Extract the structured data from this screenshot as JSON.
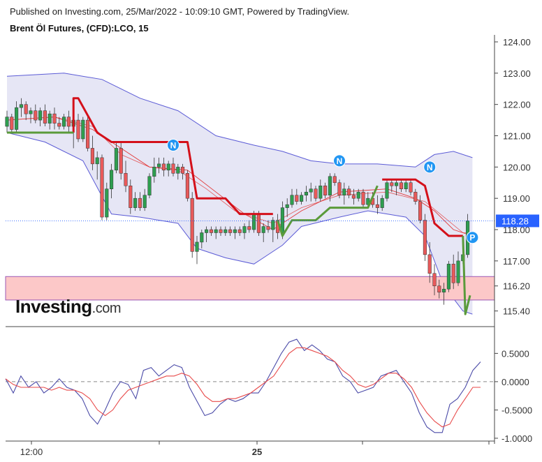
{
  "header": {
    "published": "Published on Investing.com, 25/Mar/2022 - 10:09:10 GMT, Powered by TradingView.",
    "title": "Brent Öl Futures, (CFD):LCO, 15"
  },
  "logo": {
    "word": "Investing",
    "suffix": ".com"
  },
  "colors": {
    "bull": "#2e9e4f",
    "bear": "#e8595a",
    "band_line": "#5b5bd6",
    "band_fill": "#e6e6f5",
    "supertrend_down": "#d4101a",
    "supertrend_up": "#5a9a3a",
    "ma": "#e23a3a",
    "zone_fill": "#fcc8c8",
    "zone_edge": "#9b59b6",
    "price_tag": "#2962ff",
    "osc_line": "#4b4ba8",
    "osc_signal": "#e84a4a"
  },
  "chart_data": [
    {
      "type": "candlestick",
      "title": "Brent Öl Futures, (CFD):LCO, 15",
      "x_ticks": [
        {
          "label": "12:00",
          "bold": false
        },
        {
          "label": "25",
          "bold": true
        }
      ],
      "y_ticks": [
        "124.00",
        "123.00",
        "122.00",
        "121.00",
        "120.00",
        "119.00",
        "118.00",
        "117.00",
        "116.20",
        "115.40"
      ],
      "y_range": [
        114.9,
        124.0
      ],
      "last_price": "118.28",
      "support_zone": [
        115.75,
        116.5
      ],
      "markers": [
        {
          "label": "N",
          "bar": 35,
          "price": 120.7
        },
        {
          "label": "N",
          "bar": 70,
          "price": 120.2
        },
        {
          "label": "N",
          "bar": 89,
          "price": 120.0
        },
        {
          "label": "P",
          "bar": 98,
          "price": 117.75
        }
      ],
      "candles": [
        [
          121.3,
          121.8,
          121.1,
          121.6
        ],
        [
          121.6,
          121.7,
          121.1,
          121.2
        ],
        [
          121.2,
          122.1,
          121.1,
          121.9
        ],
        [
          121.9,
          122.2,
          121.6,
          122.0
        ],
        [
          122.0,
          122.1,
          121.5,
          121.7
        ],
        [
          121.7,
          121.9,
          121.4,
          121.8
        ],
        [
          121.8,
          122.0,
          121.4,
          121.5
        ],
        [
          121.5,
          121.9,
          121.3,
          121.8
        ],
        [
          121.8,
          122.0,
          121.3,
          121.4
        ],
        [
          121.4,
          121.8,
          121.2,
          121.7
        ],
        [
          121.7,
          121.9,
          121.2,
          121.4
        ],
        [
          121.4,
          121.6,
          121.2,
          121.3
        ],
        [
          121.3,
          121.7,
          121.2,
          121.6
        ],
        [
          121.6,
          121.8,
          121.1,
          121.3
        ],
        [
          121.3,
          121.7,
          120.6,
          121.5
        ],
        [
          121.5,
          121.7,
          120.8,
          120.9
        ],
        [
          120.9,
          121.6,
          120.8,
          121.5
        ],
        [
          121.5,
          121.7,
          120.5,
          120.6
        ],
        [
          120.6,
          121.0,
          119.9,
          120.1
        ],
        [
          120.1,
          120.5,
          119.6,
          120.3
        ],
        [
          120.3,
          120.4,
          118.3,
          118.4
        ],
        [
          118.4,
          119.5,
          118.3,
          119.3
        ],
        [
          119.3,
          120.1,
          119.0,
          119.9
        ],
        [
          119.9,
          120.8,
          119.8,
          120.6
        ],
        [
          120.6,
          120.8,
          119.6,
          119.8
        ],
        [
          119.8,
          120.2,
          119.2,
          119.4
        ],
        [
          119.4,
          119.6,
          118.5,
          118.7
        ],
        [
          118.7,
          119.2,
          118.6,
          119.0
        ],
        [
          119.0,
          119.2,
          118.6,
          118.7
        ],
        [
          118.7,
          119.3,
          118.6,
          119.1
        ],
        [
          119.1,
          119.8,
          119.0,
          119.7
        ],
        [
          119.7,
          120.3,
          119.5,
          120.0
        ],
        [
          120.0,
          120.3,
          119.8,
          120.1
        ],
        [
          120.1,
          120.3,
          119.7,
          119.9
        ],
        [
          119.9,
          120.2,
          119.7,
          120.1
        ],
        [
          120.1,
          120.3,
          119.7,
          119.8
        ],
        [
          119.8,
          120.1,
          119.6,
          120.0
        ],
        [
          120.0,
          120.1,
          119.6,
          119.8
        ],
        [
          119.8,
          119.9,
          118.9,
          119.0
        ],
        [
          119.0,
          119.2,
          117.1,
          117.3
        ],
        [
          117.3,
          117.8,
          116.9,
          117.6
        ],
        [
          117.6,
          118.0,
          117.4,
          117.9
        ],
        [
          117.9,
          118.1,
          117.6,
          118.0
        ],
        [
          118.0,
          118.1,
          117.8,
          117.9
        ],
        [
          117.9,
          118.1,
          117.7,
          118.0
        ],
        [
          118.0,
          118.1,
          117.8,
          117.9
        ],
        [
          117.9,
          118.1,
          117.8,
          118.0
        ],
        [
          118.0,
          118.1,
          117.8,
          117.9
        ],
        [
          117.9,
          118.1,
          117.7,
          118.0
        ],
        [
          118.0,
          118.1,
          117.8,
          117.9
        ],
        [
          117.9,
          118.2,
          117.7,
          118.1
        ],
        [
          118.1,
          118.3,
          117.9,
          118.0
        ],
        [
          118.0,
          118.6,
          117.9,
          118.5
        ],
        [
          118.5,
          118.6,
          117.8,
          117.9
        ],
        [
          117.9,
          118.2,
          117.6,
          118.1
        ],
        [
          118.1,
          118.3,
          117.9,
          118.0
        ],
        [
          118.0,
          118.4,
          117.6,
          118.3
        ],
        [
          118.3,
          118.5,
          117.7,
          117.9
        ],
        [
          117.9,
          118.9,
          117.7,
          118.7
        ],
        [
          118.7,
          119.0,
          118.4,
          118.8
        ],
        [
          118.8,
          119.3,
          118.7,
          119.1
        ],
        [
          119.1,
          119.3,
          118.8,
          118.9
        ],
        [
          118.9,
          119.2,
          118.8,
          119.1
        ],
        [
          119.1,
          119.4,
          118.9,
          119.2
        ],
        [
          119.2,
          119.5,
          118.9,
          119.3
        ],
        [
          119.3,
          119.4,
          118.9,
          119.0
        ],
        [
          119.0,
          119.6,
          118.9,
          119.4
        ],
        [
          119.4,
          119.5,
          119.0,
          119.1
        ],
        [
          119.1,
          119.8,
          118.9,
          119.7
        ],
        [
          119.7,
          119.8,
          119.4,
          119.5
        ],
        [
          119.5,
          119.6,
          119.0,
          119.1
        ],
        [
          119.1,
          119.5,
          118.8,
          119.3
        ],
        [
          119.3,
          119.4,
          119.0,
          119.1
        ],
        [
          119.1,
          119.3,
          118.8,
          119.0
        ],
        [
          119.0,
          119.3,
          118.9,
          119.2
        ],
        [
          119.2,
          119.3,
          118.7,
          118.8
        ],
        [
          118.8,
          119.2,
          118.7,
          119.0
        ],
        [
          119.0,
          119.2,
          118.7,
          118.8
        ],
        [
          118.8,
          119.1,
          118.5,
          118.7
        ],
        [
          118.7,
          119.1,
          118.6,
          119.0
        ],
        [
          119.0,
          119.6,
          118.9,
          119.5
        ],
        [
          119.5,
          119.6,
          119.2,
          119.4
        ],
        [
          119.4,
          119.6,
          119.1,
          119.5
        ],
        [
          119.5,
          119.6,
          119.2,
          119.3
        ],
        [
          119.3,
          119.6,
          119.2,
          119.5
        ],
        [
          119.5,
          119.6,
          119.1,
          119.2
        ],
        [
          119.2,
          119.3,
          118.8,
          118.9
        ],
        [
          118.9,
          119.1,
          118.2,
          118.3
        ],
        [
          118.3,
          118.5,
          117.0,
          117.2
        ],
        [
          117.2,
          117.6,
          116.3,
          116.6
        ],
        [
          116.6,
          116.9,
          115.9,
          116.2
        ],
        [
          116.2,
          116.4,
          115.8,
          116.0
        ],
        [
          116.0,
          116.3,
          115.6,
          116.1
        ],
        [
          116.1,
          117.0,
          116.0,
          116.9
        ],
        [
          116.9,
          117.2,
          116.1,
          116.3
        ],
        [
          116.3,
          117.3,
          116.2,
          117.0
        ],
        [
          117.0,
          117.4,
          116.9,
          117.2
        ],
        [
          117.2,
          118.5,
          117.1,
          118.28
        ]
      ],
      "bollinger": {
        "upper": [
          [
            0,
            122.9
          ],
          [
            12,
            123.0
          ],
          [
            20,
            122.8
          ],
          [
            28,
            122.2
          ],
          [
            36,
            121.8
          ],
          [
            44,
            121.0
          ],
          [
            52,
            120.7
          ],
          [
            58,
            120.5
          ],
          [
            64,
            120.2
          ],
          [
            70,
            120.1
          ],
          [
            78,
            120.1
          ],
          [
            86,
            120.0
          ],
          [
            90,
            120.4
          ],
          [
            94,
            120.5
          ],
          [
            98,
            120.3
          ]
        ],
        "middle": [
          [
            0,
            121.5
          ],
          [
            10,
            121.6
          ],
          [
            18,
            121.3
          ],
          [
            24,
            120.4
          ],
          [
            30,
            120.0
          ],
          [
            36,
            119.9
          ],
          [
            42,
            119.3
          ],
          [
            48,
            118.6
          ],
          [
            56,
            118.2
          ],
          [
            62,
            118.7
          ],
          [
            70,
            119.1
          ],
          [
            80,
            119.2
          ],
          [
            88,
            118.9
          ],
          [
            92,
            118.4
          ],
          [
            96,
            117.9
          ],
          [
            98,
            117.9
          ]
        ],
        "lower": [
          [
            0,
            121.1
          ],
          [
            8,
            120.8
          ],
          [
            16,
            120.2
          ],
          [
            22,
            118.5
          ],
          [
            28,
            118.4
          ],
          [
            36,
            118.2
          ],
          [
            40,
            117.4
          ],
          [
            46,
            117.1
          ],
          [
            52,
            116.9
          ],
          [
            58,
            117.5
          ],
          [
            62,
            118.1
          ],
          [
            70,
            118.4
          ],
          [
            76,
            118.6
          ],
          [
            84,
            118.4
          ],
          [
            88,
            117.8
          ],
          [
            92,
            116.2
          ],
          [
            96,
            115.4
          ],
          [
            98,
            115.3
          ]
        ]
      },
      "supertrend": {
        "down": [
          [
            14,
            121.1
          ],
          [
            14,
            122.2
          ],
          [
            15,
            122.2
          ],
          [
            19,
            121.1
          ],
          [
            22,
            120.8
          ],
          [
            38,
            120.8
          ],
          [
            40,
            119.0
          ],
          [
            46,
            119.0
          ],
          [
            49,
            118.5
          ],
          [
            55,
            118.5
          ],
          [
            56,
            118.5
          ]
        ],
        "up": [
          [
            0,
            121.1
          ],
          [
            13,
            121.1
          ],
          [
            14,
            121.1
          ]
        ],
        "up2": [
          [
            57,
            118.3
          ],
          [
            58,
            117.8
          ],
          [
            60,
            118.3
          ],
          [
            65,
            118.3
          ],
          [
            68,
            118.7
          ],
          [
            76,
            118.7
          ],
          [
            78,
            119.4
          ]
        ],
        "down2": [
          [
            79,
            119.6
          ],
          [
            86,
            119.6
          ],
          [
            88,
            119.4
          ],
          [
            90,
            118.2
          ],
          [
            93,
            117.8
          ],
          [
            96,
            117.8
          ]
        ],
        "up3": [
          [
            96,
            117.8
          ],
          [
            96.5,
            115.3
          ],
          [
            97.5,
            115.9
          ]
        ]
      },
      "ma20": [
        [
          0,
          121.5
        ],
        [
          10,
          121.6
        ],
        [
          18,
          121.2
        ],
        [
          24,
          120.6
        ],
        [
          30,
          120.0
        ],
        [
          38,
          119.9
        ],
        [
          44,
          119.2
        ],
        [
          50,
          118.5
        ],
        [
          56,
          118.0
        ],
        [
          62,
          118.6
        ],
        [
          70,
          119.2
        ],
        [
          80,
          119.3
        ],
        [
          86,
          119.0
        ],
        [
          90,
          118.6
        ],
        [
          94,
          118.0
        ],
        [
          98,
          117.8
        ]
      ]
    },
    {
      "type": "line",
      "y_ticks": [
        "0.5000",
        "0.0000",
        "-0.5000",
        "-1.0000"
      ],
      "y_range": [
        -1.05,
        0.85
      ],
      "series": [
        {
          "key": "osc",
          "values": [
            0.05,
            -0.2,
            0.1,
            -0.1,
            0.0,
            -0.2,
            -0.1,
            0.05,
            -0.1,
            -0.15,
            -0.3,
            -0.6,
            -0.75,
            -0.5,
            -0.2,
            0.0,
            -0.05,
            -0.3,
            0.2,
            0.25,
            0.1,
            0.2,
            0.3,
            0.25,
            -0.1,
            -0.35,
            -0.6,
            -0.55,
            -0.4,
            -0.3,
            -0.35,
            -0.3,
            -0.2,
            -0.2,
            0.0,
            0.25,
            0.5,
            0.7,
            0.75,
            0.55,
            0.65,
            0.55,
            0.4,
            0.35,
            0.1,
            0.0,
            -0.2,
            -0.15,
            -0.1,
            0.1,
            0.15,
            0.2,
            0.0,
            -0.2,
            -0.55,
            -0.8,
            -0.9,
            -0.9,
            -0.4,
            -0.3,
            -0.1,
            0.2,
            0.35
          ]
        },
        {
          "key": "signal",
          "values": [
            0.05,
            -0.05,
            -0.1,
            -0.1,
            -0.1,
            -0.1,
            -0.15,
            -0.1,
            -0.15,
            -0.15,
            -0.2,
            -0.3,
            -0.5,
            -0.6,
            -0.5,
            -0.3,
            -0.15,
            -0.1,
            -0.05,
            0.0,
            0.05,
            0.1,
            0.1,
            0.15,
            0.1,
            -0.05,
            -0.25,
            -0.35,
            -0.35,
            -0.3,
            -0.3,
            -0.25,
            -0.2,
            -0.1,
            0.0,
            0.1,
            0.3,
            0.5,
            0.6,
            0.6,
            0.55,
            0.5,
            0.45,
            0.35,
            0.2,
            0.1,
            -0.05,
            -0.1,
            -0.05,
            0.05,
            0.15,
            0.15,
            0.05,
            -0.1,
            -0.35,
            -0.55,
            -0.7,
            -0.8,
            -0.75,
            -0.5,
            -0.3,
            -0.1,
            -0.1
          ]
        }
      ]
    }
  ]
}
